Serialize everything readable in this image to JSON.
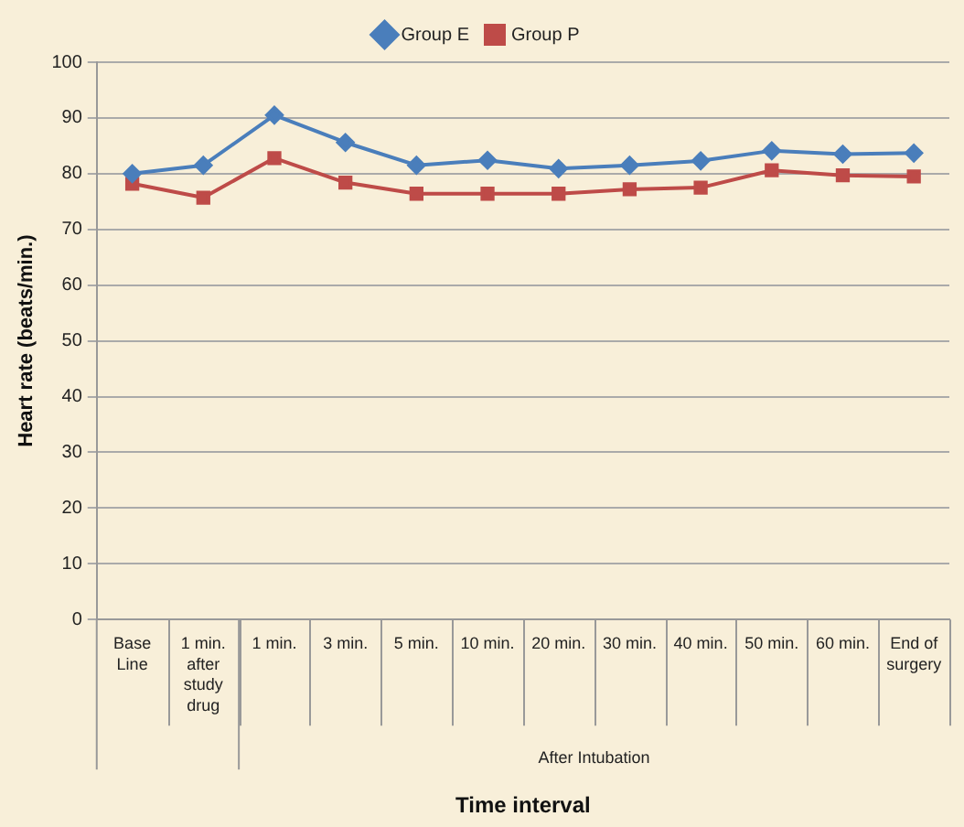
{
  "chart_data": {
    "type": "line",
    "xlabel": "Time interval",
    "ylabel": "Heart rate (beats/min.)",
    "categories": [
      "Base Line",
      "1 min. after study drug",
      "1 min.",
      "3 min.",
      "5 min.",
      "10 min.",
      "20 min.",
      "30 min.",
      "40 min.",
      "50 min.",
      "60 min.",
      "End of surgery"
    ],
    "series": [
      {
        "name": "Group E",
        "color": "#4a7ebb",
        "marker": "diamond",
        "values": [
          80,
          81.5,
          90.5,
          85.6,
          81.5,
          82.4,
          80.9,
          81.5,
          82.3,
          84.1,
          83.5,
          83.7
        ]
      },
      {
        "name": "Group P",
        "color": "#be4b48",
        "marker": "square",
        "values": [
          78.2,
          75.7,
          82.8,
          78.4,
          76.4,
          76.4,
          76.4,
          77.2,
          77.5,
          80.6,
          79.7,
          79.5
        ]
      }
    ],
    "ylim": [
      0,
      100
    ],
    "yticks": [
      0,
      10,
      20,
      30,
      40,
      50,
      60,
      70,
      80,
      90,
      100
    ],
    "grid": "y",
    "legend": "top",
    "line_style": "solid",
    "annotations": [
      "After Intubation"
    ]
  }
}
